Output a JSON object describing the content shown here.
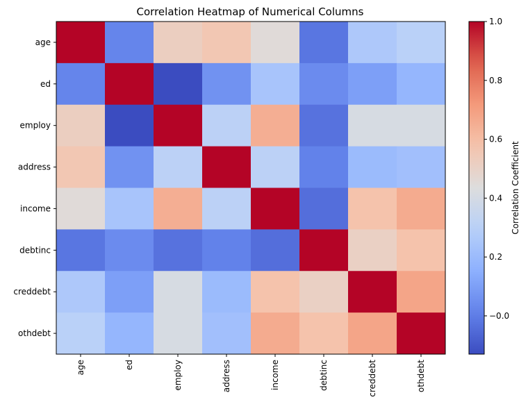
{
  "chart_data": {
    "type": "heatmap",
    "title": "Correlation Heatmap of Numerical Columns",
    "rows": [
      "age",
      "ed",
      "employ",
      "address",
      "income",
      "debtinc",
      "creddebt",
      "othdebt"
    ],
    "cols": [
      "age",
      "ed",
      "employ",
      "address",
      "income",
      "debtinc",
      "creddebt",
      "othdebt"
    ],
    "values": [
      [
        1.0,
        0.02,
        0.52,
        0.56,
        0.45,
        -0.02,
        0.26,
        0.3
      ],
      [
        0.02,
        1.0,
        -0.13,
        0.06,
        0.24,
        0.04,
        0.1,
        0.18
      ],
      [
        0.52,
        -0.13,
        1.0,
        0.31,
        0.65,
        -0.03,
        0.41,
        0.41
      ],
      [
        0.56,
        0.06,
        0.31,
        1.0,
        0.31,
        0.01,
        0.2,
        0.22
      ],
      [
        0.45,
        0.24,
        0.65,
        0.31,
        1.0,
        -0.04,
        0.58,
        0.66
      ],
      [
        -0.02,
        0.04,
        -0.03,
        0.01,
        -0.04,
        1.0,
        0.51,
        0.58
      ],
      [
        0.26,
        0.1,
        0.41,
        0.2,
        0.58,
        0.51,
        1.0,
        0.68
      ],
      [
        0.3,
        0.18,
        0.41,
        0.22,
        0.66,
        0.58,
        0.68,
        1.0
      ]
    ],
    "colormap": "coolwarm",
    "vmin": -0.13,
    "vmax": 1.0,
    "colorbar": {
      "label": "Correlation Coefficient",
      "ticks": [
        -0.0,
        0.2,
        0.4,
        0.6,
        0.8,
        1.0
      ],
      "tick_labels": [
        "−0.0",
        "0.2",
        "0.4",
        "0.6",
        "0.8",
        "1.0"
      ]
    }
  }
}
